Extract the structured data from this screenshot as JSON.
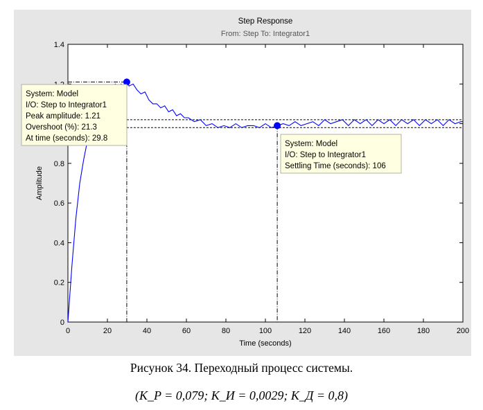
{
  "chart_data": {
    "type": "line",
    "title": "Step Response",
    "subtitle": "From: Step  To: Integrator1",
    "xlabel": "Time (seconds)",
    "ylabel": "Amplitude",
    "xlim": [
      0,
      200
    ],
    "ylim": [
      0,
      1.4
    ],
    "xticks": [
      0,
      20,
      40,
      60,
      80,
      100,
      120,
      140,
      160,
      180,
      200
    ],
    "yticks": [
      0,
      0.2,
      0.4,
      0.6,
      0.8,
      1,
      1.2,
      1.4
    ],
    "ytick_labels": [
      "0",
      "0.2",
      "0.4",
      "0.6",
      "0.8",
      "1",
      "1.2",
      "1.4"
    ],
    "grid": false,
    "line_color": "#0000ff",
    "settling_band": [
      0.98,
      1.02
    ],
    "series": [
      {
        "x": [
          0,
          2,
          4,
          6,
          8,
          10,
          12,
          14,
          16,
          18,
          20,
          22,
          24,
          26,
          27,
          28,
          29.8,
          31,
          33,
          35,
          37,
          39,
          41,
          43,
          45,
          47,
          49,
          51,
          53,
          55,
          57,
          59,
          61,
          64,
          67,
          70,
          73,
          76,
          79,
          82,
          85,
          88,
          91,
          94,
          97,
          100,
          103,
          106,
          109,
          112,
          115,
          118,
          121,
          124,
          127,
          130,
          133,
          136,
          139,
          142,
          145,
          148,
          151,
          154,
          157,
          160,
          163,
          166,
          169,
          172,
          175,
          178,
          181,
          184,
          187,
          190,
          193,
          196,
          199,
          200
        ],
        "y": [
          0,
          0.28,
          0.52,
          0.7,
          0.82,
          0.92,
          1.0,
          1.06,
          1.1,
          1.14,
          1.16,
          1.18,
          1.2,
          1.18,
          1.2,
          1.19,
          1.21,
          1.19,
          1.2,
          1.17,
          1.15,
          1.16,
          1.12,
          1.1,
          1.1,
          1.08,
          1.09,
          1.06,
          1.07,
          1.04,
          1.05,
          1.03,
          1.03,
          1.01,
          1.02,
          0.99,
          1.0,
          0.98,
          0.99,
          0.98,
          1.0,
          0.98,
          0.99,
          0.99,
          0.98,
          1.0,
          0.98,
          0.99,
          1.0,
          0.99,
          1.01,
          0.99,
          1.0,
          1.01,
          0.99,
          1.02,
          1.0,
          1.01,
          1.02,
          0.99,
          1.02,
          1.0,
          1.02,
          0.99,
          1.02,
          1.0,
          1.02,
          0.99,
          1.02,
          1.0,
          1.02,
          0.99,
          1.02,
          1.0,
          1.02,
          0.99,
          1.02,
          1.0,
          1.01,
          1.01
        ]
      }
    ],
    "markers": [
      {
        "x": 29.8,
        "y": 1.21,
        "tooltip": [
          "System: Model",
          "I/O: Step to Integrator1",
          "Peak amplitude: 1.21",
          "Overshoot (%): 21.3",
          "At time (seconds): 29.8"
        ]
      },
      {
        "x": 106,
        "y": 0.99,
        "tooltip": [
          "System: Model",
          "I/O: Step to Integrator1",
          "Settling Time (seconds): 106"
        ]
      }
    ]
  },
  "caption": {
    "text": "Рисунок 34. Переходный процесс системы.",
    "formula": "(K_P = 0,079; K_И = 0,0029; K_Д = 0,8)"
  }
}
